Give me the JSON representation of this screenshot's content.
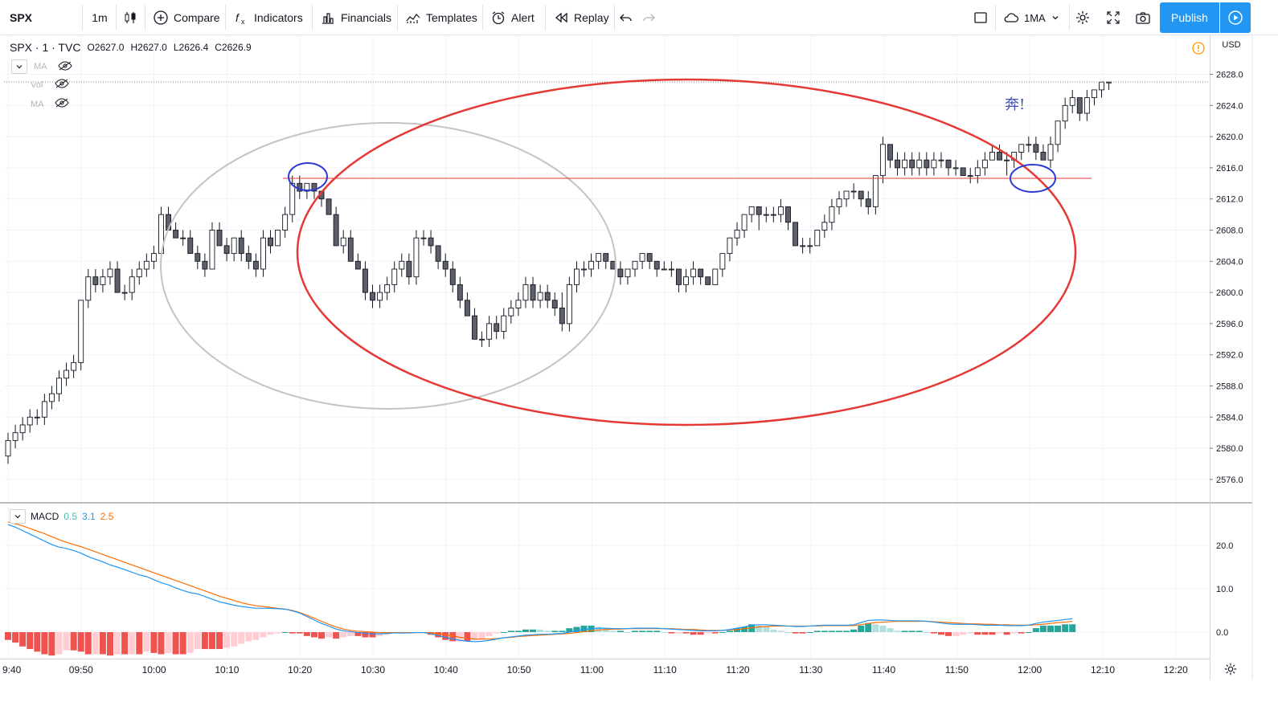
{
  "toolbar": {
    "symbol": "SPX",
    "interval": "1m",
    "compare": "Compare",
    "indicators": "Indicators",
    "financials": "Financials",
    "templates": "Templates",
    "alert": "Alert",
    "replay": "Replay",
    "layout_name": "1MA",
    "publish": "Publish"
  },
  "legend": {
    "symbol_line": "SPX · 1 · TVC",
    "open": "O2627.0",
    "high": "H2627.0",
    "low": "L2626.4",
    "close": "C2626.9",
    "indicators": [
      "MA",
      "Vol",
      "MA"
    ]
  },
  "currency": "USD",
  "annotation": "奔!",
  "macd_legend": {
    "name": "MACD",
    "v1": "0.5",
    "v2": "3.1",
    "v3": "2.5"
  },
  "colors": {
    "up": "#ffffff",
    "down": "#5d606b",
    "red": "#e53935",
    "blue": "#2a3bd6",
    "gray": "#c4c4c4",
    "macd": "#2196f3",
    "signal": "#ff6d00"
  },
  "price_axis": [
    "2628.0",
    "2624.0",
    "2620.0",
    "2616.0",
    "2612.0",
    "2608.0",
    "2604.0",
    "2600.0",
    "2596.0",
    "2592.0",
    "2588.0",
    "2584.0",
    "2580.0",
    "2576.0"
  ],
  "macd_axis": [
    "20.0",
    "10.0",
    "0.0"
  ],
  "time_axis": [
    "9:40",
    "09:50",
    "10:00",
    "10:10",
    "10:20",
    "10:30",
    "10:40",
    "10:50",
    "11:00",
    "11:10",
    "11:20",
    "11:30",
    "11:40",
    "11:50",
    "12:00",
    "12:10",
    "12:20"
  ],
  "chart_data": {
    "type": "candlestick",
    "x_labels": [
      "9:40",
      "09:50",
      "10:00",
      "10:10",
      "10:20",
      "10:30",
      "10:40",
      "10:50",
      "11:00",
      "11:10",
      "11:20",
      "11:30",
      "11:40",
      "11:50",
      "12:00",
      "12:10",
      "12:20"
    ],
    "ylim": [
      2574,
      2630
    ],
    "ohlc": [
      [
        2579,
        2582,
        2578,
        2581
      ],
      [
        2581,
        2583,
        2580,
        2582
      ],
      [
        2582,
        2584,
        2581,
        2583
      ],
      [
        2583,
        2585,
        2582,
        2584
      ],
      [
        2584,
        2585,
        2583,
        2584
      ],
      [
        2584,
        2587,
        2583,
        2586
      ],
      [
        2586,
        2588,
        2585,
        2587
      ],
      [
        2587,
        2590,
        2586,
        2589
      ],
      [
        2589,
        2591,
        2588,
        2590
      ],
      [
        2590,
        2592,
        2589,
        2591
      ],
      [
        2591,
        2599,
        2590,
        2599
      ],
      [
        2599,
        2603,
        2598,
        2602
      ],
      [
        2602,
        2603,
        2600,
        2601
      ],
      [
        2601,
        2603,
        2600,
        2602
      ],
      [
        2602,
        2604,
        2601,
        2603
      ],
      [
        2603,
        2604,
        2600,
        2600
      ],
      [
        2600,
        2601,
        2599,
        2600
      ],
      [
        2600,
        2603,
        2599,
        2602
      ],
      [
        2602,
        2604,
        2601,
        2603
      ],
      [
        2603,
        2605,
        2602,
        2604
      ],
      [
        2604,
        2606,
        2603,
        2605
      ],
      [
        2605,
        2611,
        2604,
        2610
      ],
      [
        2610,
        2611,
        2608,
        2608
      ],
      [
        2608,
        2609,
        2607,
        2607
      ],
      [
        2607,
        2608,
        2606,
        2607
      ],
      [
        2607,
        2608,
        2605,
        2605
      ],
      [
        2605,
        2606,
        2603,
        2604
      ],
      [
        2604,
        2605,
        2602,
        2603
      ],
      [
        2603,
        2609,
        2603,
        2608
      ],
      [
        2608,
        2609,
        2606,
        2606
      ],
      [
        2606,
        2607,
        2604,
        2605
      ],
      [
        2605,
        2607,
        2604,
        2607
      ],
      [
        2607,
        2608,
        2604,
        2605
      ],
      [
        2605,
        2606,
        2603,
        2604
      ],
      [
        2604,
        2605,
        2602,
        2603
      ],
      [
        2603,
        2608,
        2602,
        2607
      ],
      [
        2607,
        2608,
        2605,
        2606
      ],
      [
        2606,
        2608,
        2606,
        2608
      ],
      [
        2608,
        2611,
        2607,
        2610
      ],
      [
        2610,
        2615,
        2609,
        2614
      ],
      [
        2614,
        2615,
        2612,
        2613
      ],
      [
        2613,
        2614,
        2612,
        2614
      ],
      [
        2614,
        2614,
        2612,
        2613
      ],
      [
        2613,
        2613,
        2611,
        2612
      ],
      [
        2612,
        2612,
        2610,
        2610
      ],
      [
        2610,
        2611,
        2606,
        2606
      ],
      [
        2606,
        2608,
        2605,
        2607
      ],
      [
        2607,
        2608,
        2604,
        2604
      ],
      [
        2604,
        2605,
        2603,
        2603
      ],
      [
        2603,
        2604,
        2599,
        2600
      ],
      [
        2600,
        2601,
        2598,
        2599
      ],
      [
        2599,
        2601,
        2598,
        2600
      ],
      [
        2600,
        2602,
        2599,
        2601
      ],
      [
        2601,
        2604,
        2600,
        2603
      ],
      [
        2603,
        2605,
        2602,
        2604
      ],
      [
        2604,
        2605,
        2601,
        2602
      ],
      [
        2602,
        2608,
        2601,
        2607
      ],
      [
        2607,
        2608,
        2606,
        2607
      ],
      [
        2607,
        2608,
        2605,
        2606
      ],
      [
        2606,
        2606,
        2603,
        2604
      ],
      [
        2604,
        2605,
        2602,
        2603
      ],
      [
        2603,
        2604,
        2600,
        2601
      ],
      [
        2601,
        2602,
        2598,
        2599
      ],
      [
        2599,
        2600,
        2597,
        2597
      ],
      [
        2597,
        2598,
        2594,
        2594
      ],
      [
        2594,
        2595,
        2593,
        2594
      ],
      [
        2594,
        2597,
        2593,
        2596
      ],
      [
        2596,
        2597,
        2594,
        2595
      ],
      [
        2595,
        2598,
        2594,
        2597
      ],
      [
        2597,
        2599,
        2596,
        2598
      ],
      [
        2598,
        2600,
        2597,
        2599
      ],
      [
        2599,
        2602,
        2598,
        2601
      ],
      [
        2601,
        2602,
        2598,
        2599
      ],
      [
        2599,
        2601,
        2598,
        2600
      ],
      [
        2600,
        2601,
        2598,
        2599
      ],
      [
        2599,
        2600,
        2597,
        2598
      ],
      [
        2598,
        2600,
        2595,
        2596
      ],
      [
        2596,
        2602,
        2595,
        2601
      ],
      [
        2601,
        2604,
        2600,
        2603
      ],
      [
        2603,
        2604,
        2602,
        2603
      ],
      [
        2603,
        2605,
        2602,
        2604
      ],
      [
        2604,
        2605,
        2603,
        2605
      ],
      [
        2605,
        2605,
        2603,
        2604
      ],
      [
        2604,
        2604,
        2603,
        2603
      ],
      [
        2603,
        2604,
        2601,
        2602
      ],
      [
        2602,
        2603,
        2601,
        2603
      ],
      [
        2603,
        2604,
        2602,
        2604
      ],
      [
        2604,
        2605,
        2603,
        2605
      ],
      [
        2605,
        2605,
        2603,
        2604
      ],
      [
        2604,
        2604,
        2602,
        2603
      ],
      [
        2603,
        2604,
        2603,
        2603
      ],
      [
        2603,
        2604,
        2602,
        2603
      ],
      [
        2603,
        2603,
        2600,
        2601
      ],
      [
        2601,
        2603,
        2600,
        2602
      ],
      [
        2602,
        2604,
        2601,
        2603
      ],
      [
        2603,
        2603,
        2601,
        2602
      ],
      [
        2602,
        2602,
        2601,
        2601
      ],
      [
        2601,
        2603,
        2601,
        2603
      ],
      [
        2603,
        2605,
        2602,
        2605
      ],
      [
        2605,
        2607,
        2604,
        2607
      ],
      [
        2607,
        2609,
        2606,
        2608
      ],
      [
        2608,
        2610,
        2607,
        2610
      ],
      [
        2610,
        2611,
        2609,
        2611
      ],
      [
        2611,
        2611,
        2608,
        2610
      ],
      [
        2610,
        2611,
        2609,
        2610
      ],
      [
        2610,
        2611,
        2609,
        2610
      ],
      [
        2610,
        2612,
        2609,
        2611
      ],
      [
        2611,
        2611,
        2608,
        2609
      ],
      [
        2609,
        2609,
        2606,
        2606
      ],
      [
        2606,
        2607,
        2605,
        2606
      ],
      [
        2606,
        2607,
        2605,
        2606
      ],
      [
        2606,
        2608,
        2606,
        2608
      ],
      [
        2608,
        2610,
        2607,
        2609
      ],
      [
        2609,
        2612,
        2608,
        2611
      ],
      [
        2611,
        2613,
        2610,
        2612
      ],
      [
        2612,
        2613,
        2611,
        2613
      ],
      [
        2613,
        2614,
        2612,
        2613
      ],
      [
        2613,
        2613,
        2611,
        2612
      ],
      [
        2612,
        2613,
        2610,
        2611
      ],
      [
        2611,
        2615,
        2610,
        2615
      ],
      [
        2615,
        2620,
        2614,
        2619
      ],
      [
        2619,
        2619,
        2616,
        2617
      ],
      [
        2617,
        2618,
        2615,
        2616
      ],
      [
        2616,
        2618,
        2615,
        2617
      ],
      [
        2617,
        2618,
        2615,
        2616
      ],
      [
        2616,
        2618,
        2615,
        2617
      ],
      [
        2617,
        2618,
        2615,
        2616
      ],
      [
        2616,
        2618,
        2615,
        2617
      ],
      [
        2617,
        2618,
        2616,
        2617
      ],
      [
        2617,
        2617,
        2615,
        2616
      ],
      [
        2616,
        2617,
        2615,
        2616
      ],
      [
        2616,
        2616,
        2615,
        2615
      ],
      [
        2615,
        2616,
        2614,
        2615
      ],
      [
        2615,
        2617,
        2614,
        2616
      ],
      [
        2616,
        2618,
        2615,
        2617
      ],
      [
        2617,
        2619,
        2617,
        2618
      ],
      [
        2618,
        2619,
        2617,
        2617
      ],
      [
        2617,
        2618,
        2615,
        2617
      ],
      [
        2617,
        2618,
        2616,
        2618
      ],
      [
        2618,
        2619,
        2617,
        2619
      ],
      [
        2619,
        2620,
        2618,
        2619
      ],
      [
        2619,
        2620,
        2617,
        2618
      ],
      [
        2618,
        2619,
        2617,
        2617
      ],
      [
        2617,
        2620,
        2616,
        2619
      ],
      [
        2619,
        2622,
        2618,
        2622
      ],
      [
        2622,
        2625,
        2621,
        2624
      ],
      [
        2624,
        2626,
        2623,
        2625
      ],
      [
        2625,
        2625,
        2622,
        2623
      ],
      [
        2623,
        2626,
        2622,
        2625
      ],
      [
        2625,
        2626,
        2624,
        2626
      ],
      [
        2626,
        2627,
        2625,
        2627
      ],
      [
        2627,
        2627,
        2626,
        2627
      ]
    ],
    "macd": [
      24.8,
      24.2,
      23.4,
      22.6,
      21.8,
      21.0,
      20.2,
      19.6,
      19.3,
      18.8,
      18.2,
      17.4,
      16.8,
      16.2,
      15.5,
      15.0,
      14.4,
      13.8,
      13.2,
      12.8,
      12.1,
      11.4,
      10.9,
      10.2,
      9.6,
      9.1,
      8.8,
      8.2,
      7.6,
      7.0,
      6.6,
      6.2,
      5.9,
      5.7,
      5.5,
      5.5,
      5.5,
      5.4,
      5.3,
      4.9,
      4.4,
      3.6,
      2.8,
      2.0,
      1.4,
      0.7,
      0.3,
      0.1,
      -0.1,
      -0.3,
      -0.4,
      -0.4,
      -0.3,
      -0.2,
      -0.2,
      -0.2,
      -0.1,
      -0.1,
      -0.4,
      -0.8,
      -1.2,
      -1.6,
      -1.9,
      -2.1,
      -2.2,
      -2.1,
      -1.9,
      -1.6,
      -1.3,
      -1.1,
      -0.9,
      -0.7,
      -0.6,
      -0.5,
      -0.5,
      -0.4,
      -0.3,
      0.0,
      0.3,
      0.6,
      0.8,
      0.9,
      0.9,
      0.8,
      0.8,
      0.8,
      0.9,
      0.9,
      0.9,
      0.9,
      0.8,
      0.7,
      0.6,
      0.5,
      0.4,
      0.3,
      0.3,
      0.3,
      0.4,
      0.6,
      0.9,
      1.2,
      1.6,
      1.7,
      1.7,
      1.6,
      1.5,
      1.4,
      1.3,
      1.3,
      1.4,
      1.5,
      1.6,
      1.6,
      1.6,
      1.6,
      1.7,
      2.2,
      2.7,
      2.8,
      2.8,
      2.7,
      2.6,
      2.6,
      2.6,
      2.6,
      2.5,
      2.3,
      2.1,
      1.9,
      1.8,
      1.8,
      1.8,
      1.7,
      1.6,
      1.6,
      1.6,
      1.5,
      1.5,
      1.5,
      1.6,
      2.0,
      2.3,
      2.5,
      2.7,
      2.9,
      3.1
    ],
    "signal": [
      25.4,
      25.0,
      24.5,
      23.9,
      23.3,
      22.7,
      22.0,
      21.3,
      20.7,
      20.2,
      19.7,
      19.1,
      18.5,
      17.9,
      17.3,
      16.7,
      16.1,
      15.5,
      14.9,
      14.3,
      13.7,
      13.1,
      12.5,
      11.9,
      11.3,
      10.7,
      10.1,
      9.5,
      8.9,
      8.3,
      7.8,
      7.3,
      6.8,
      6.4,
      6.1,
      5.9,
      5.7,
      5.5,
      5.3,
      5.0,
      4.5,
      3.9,
      3.2,
      2.5,
      1.8,
      1.2,
      0.7,
      0.4,
      0.2,
      0.1,
      0.0,
      -0.1,
      -0.1,
      -0.1,
      -0.1,
      -0.1,
      -0.1,
      -0.1,
      -0.2,
      -0.4,
      -0.6,
      -0.9,
      -1.2,
      -1.4,
      -1.6,
      -1.6,
      -1.6,
      -1.5,
      -1.3,
      -1.2,
      -1.0,
      -0.9,
      -0.8,
      -0.7,
      -0.6,
      -0.5,
      -0.4,
      -0.3,
      -0.1,
      0.1,
      0.3,
      0.5,
      0.6,
      0.7,
      0.7,
      0.8,
      0.8,
      0.8,
      0.8,
      0.8,
      0.8,
      0.8,
      0.7,
      0.6,
      0.6,
      0.5,
      0.4,
      0.4,
      0.4,
      0.5,
      0.6,
      0.8,
      1.0,
      1.2,
      1.3,
      1.4,
      1.4,
      1.4,
      1.4,
      1.4,
      1.4,
      1.4,
      1.5,
      1.5,
      1.5,
      1.5,
      1.5,
      1.7,
      2.0,
      2.2,
      2.3,
      2.4,
      2.5,
      2.5,
      2.5,
      2.5,
      2.5,
      2.4,
      2.3,
      2.2,
      2.1,
      2.0,
      1.9,
      1.9,
      1.8,
      1.8,
      1.7,
      1.7,
      1.6,
      1.6,
      1.6,
      1.7,
      1.8,
      2.0,
      2.2,
      2.3,
      2.5
    ]
  }
}
